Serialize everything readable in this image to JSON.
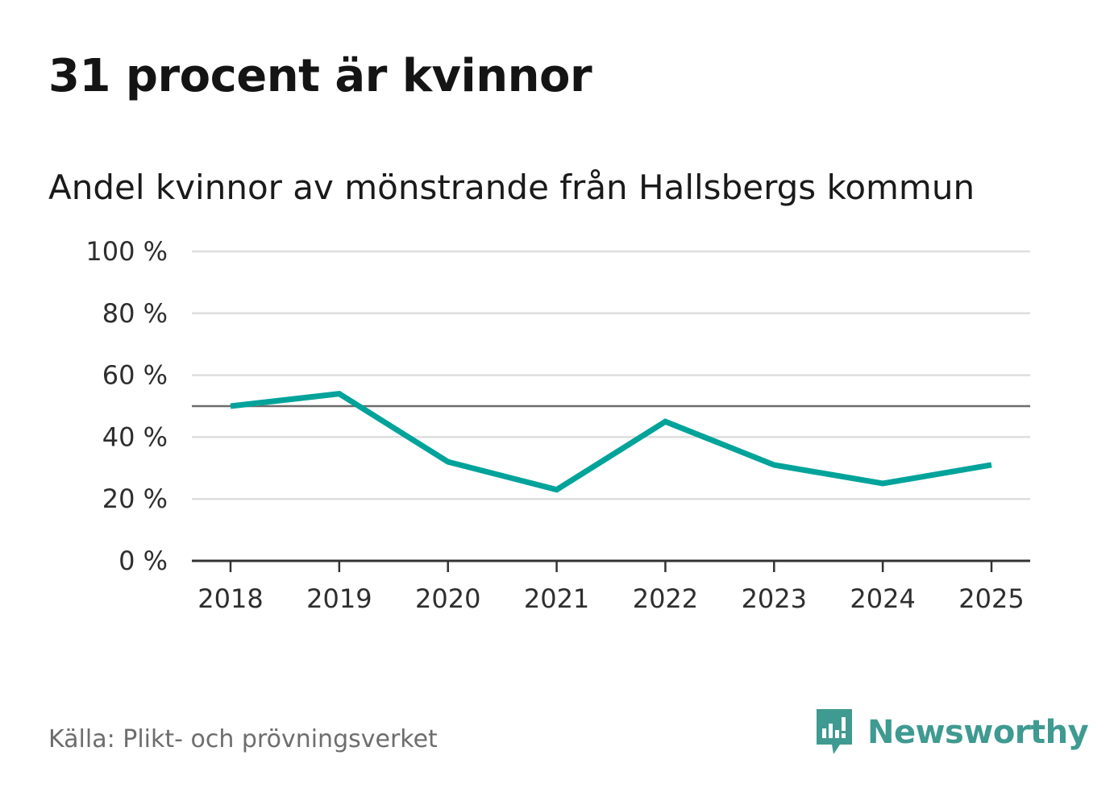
{
  "title": "31 procent är kvinnor",
  "subtitle": "Andel kvinnor av mönstrande från Hallsbergs kommun",
  "source": "Källa: Plikt- och prövningsverket",
  "brand": {
    "name": "Newsworthy",
    "icon": "newsworthy-logo-icon",
    "color": "#3f9a91"
  },
  "chart_data": {
    "type": "line",
    "title": "31 procent är kvinnor",
    "subtitle": "Andel kvinnor av mönstrande från Hallsbergs kommun",
    "xlabel": "",
    "ylabel": "",
    "categories": [
      "2018",
      "2019",
      "2020",
      "2021",
      "2022",
      "2023",
      "2024",
      "2025"
    ],
    "series": [
      {
        "name": "Andel kvinnor",
        "values": [
          50,
          54,
          32,
          23,
          45,
          31,
          25,
          31
        ],
        "color": "#00a39a"
      }
    ],
    "ylim": [
      0,
      100
    ],
    "yticks": [
      0,
      20,
      40,
      60,
      80,
      100
    ],
    "ytick_labels": [
      "0 %",
      "20 %",
      "40 %",
      "60 %",
      "80 %",
      "100 %"
    ],
    "reference_line": {
      "value": 50,
      "color": "#6b6b6b"
    },
    "grid": true,
    "legend": "none"
  }
}
